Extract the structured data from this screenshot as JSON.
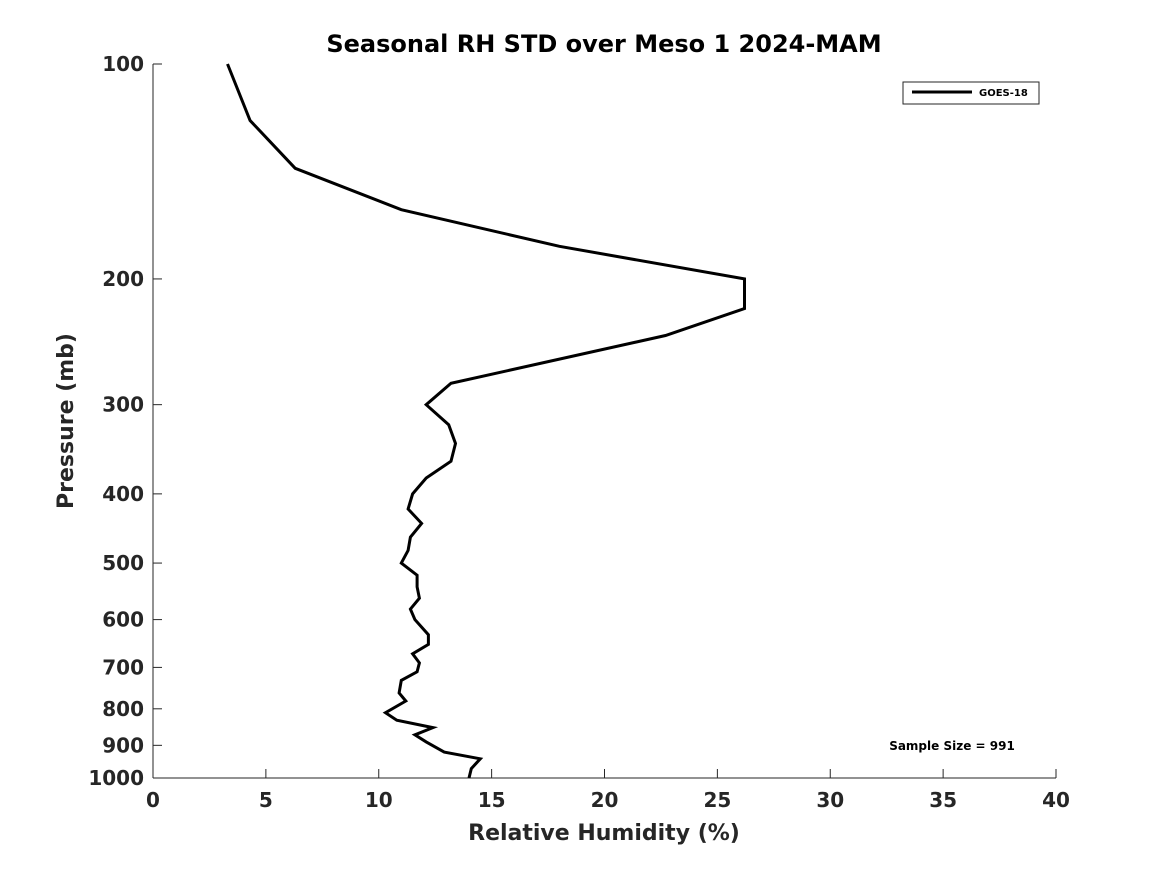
{
  "chart_data": {
    "type": "line",
    "title": "Seasonal RH STD over Meso 1  2024-MAM",
    "xlabel": "Relative Humidity (%)",
    "ylabel": "Pressure (mb)",
    "xlim": [
      0,
      40
    ],
    "ylim": [
      100,
      1000
    ],
    "yscale": "log",
    "y_reversed": true,
    "grid": false,
    "x_ticks": [
      0,
      5,
      10,
      15,
      20,
      25,
      30,
      35,
      40
    ],
    "x_tick_labels": [
      "0",
      "5",
      "10",
      "15",
      "20",
      "25",
      "30",
      "35",
      "40"
    ],
    "y_ticks": [
      100,
      200,
      300,
      400,
      500,
      600,
      700,
      800,
      900,
      1000
    ],
    "y_tick_labels": [
      "100",
      "200",
      "300",
      "400",
      "500",
      "600",
      "700",
      "800",
      "900",
      "1000"
    ],
    "legend": {
      "location": "top-right",
      "entries": [
        "GOES-18"
      ]
    },
    "annotation": "Sample Size = 991",
    "series": [
      {
        "name": "GOES-18",
        "color": "#000000",
        "x": [
          3.3,
          4.3,
          6.3,
          11.0,
          18.0,
          26.2,
          26.2,
          22.7,
          13.2,
          12.1,
          13.1,
          13.4,
          13.2,
          12.1,
          11.5,
          11.3,
          11.9,
          11.4,
          11.3,
          11.0,
          11.7,
          11.7,
          11.8,
          11.4,
          11.6,
          12.2,
          12.2,
          11.5,
          11.8,
          11.7,
          11.0,
          10.9,
          11.2,
          10.3,
          10.8,
          12.4,
          11.6,
          12.1,
          12.9,
          14.5,
          14.1,
          14.0
        ],
        "y": [
          100,
          120,
          140,
          160,
          180,
          200,
          220,
          240,
          280,
          300,
          320,
          340,
          360,
          380,
          400,
          420,
          440,
          460,
          480,
          500,
          520,
          540,
          560,
          580,
          600,
          630,
          650,
          670,
          690,
          710,
          730,
          760,
          780,
          810,
          830,
          850,
          870,
          890,
          920,
          940,
          970,
          1000
        ]
      }
    ]
  }
}
